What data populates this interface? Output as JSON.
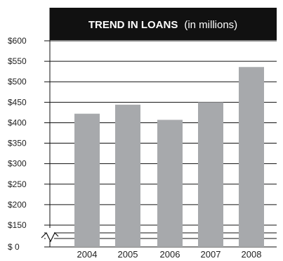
{
  "chart_data": {
    "type": "bar",
    "title": "TREND IN LOANS",
    "subtitle": "(in millions)",
    "categories": [
      "2004",
      "2005",
      "2006",
      "2007",
      "2008"
    ],
    "values": [
      422,
      444,
      407,
      450,
      536
    ],
    "y_ticks": [
      {
        "value": 600,
        "label": "$600"
      },
      {
        "value": 550,
        "label": "$550"
      },
      {
        "value": 500,
        "label": "$500"
      },
      {
        "value": 450,
        "label": "$450"
      },
      {
        "value": 400,
        "label": "$400"
      },
      {
        "value": 350,
        "label": "$350"
      },
      {
        "value": 300,
        "label": "$300"
      },
      {
        "value": 250,
        "label": "$250"
      },
      {
        "value": 200,
        "label": "$200"
      },
      {
        "value": 150,
        "label": "$150"
      },
      {
        "value": 0,
        "label": "$  0"
      }
    ],
    "ylim": [
      100,
      600
    ],
    "axis_break": "between 0 and 150",
    "grid": true,
    "colors": {
      "bar": "#a7a9ac",
      "title_band": "#111111",
      "grid": "#111111"
    }
  }
}
